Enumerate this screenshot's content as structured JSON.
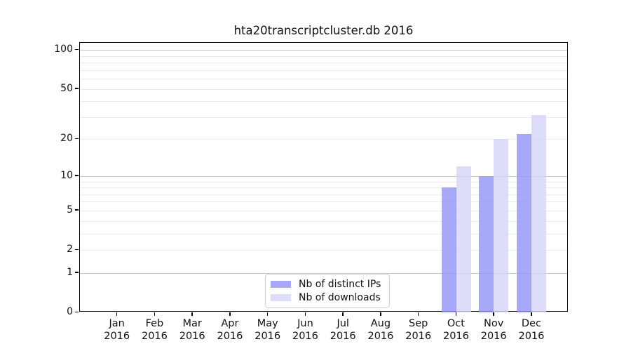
{
  "chart_data": {
    "type": "bar",
    "title": "hta20transcriptcluster.db 2016",
    "categories": [
      "Jan",
      "Feb",
      "Mar",
      "Apr",
      "May",
      "Jun",
      "Jul",
      "Aug",
      "Sep",
      "Oct",
      "Nov",
      "Dec"
    ],
    "year": "2016",
    "series": [
      {
        "name": "Nb of distinct IPs",
        "color": "rgba(146,146,247,0.8)",
        "values": [
          0,
          0,
          0,
          0,
          0,
          0,
          0,
          0,
          0,
          8,
          10,
          22
        ]
      },
      {
        "name": "Nb of downloads",
        "color": "rgba(212,212,248,0.8)",
        "values": [
          0,
          0,
          0,
          0,
          0,
          0,
          0,
          0,
          0,
          12,
          20,
          31
        ]
      }
    ],
    "y_scale": "log1p",
    "y_axis_ticks": [
      0,
      1,
      2,
      5,
      10,
      20,
      50,
      100
    ],
    "y_gridlines_major": [
      1,
      10,
      100
    ],
    "y_gridlines_minor": [
      2,
      3,
      4,
      5,
      6,
      7,
      8,
      9,
      20,
      30,
      40,
      50,
      60,
      70,
      80,
      90
    ],
    "ylim": [
      0,
      115
    ],
    "grid": "on",
    "xlabel": "",
    "ylabel": "",
    "legend_position": "bottom-center"
  }
}
